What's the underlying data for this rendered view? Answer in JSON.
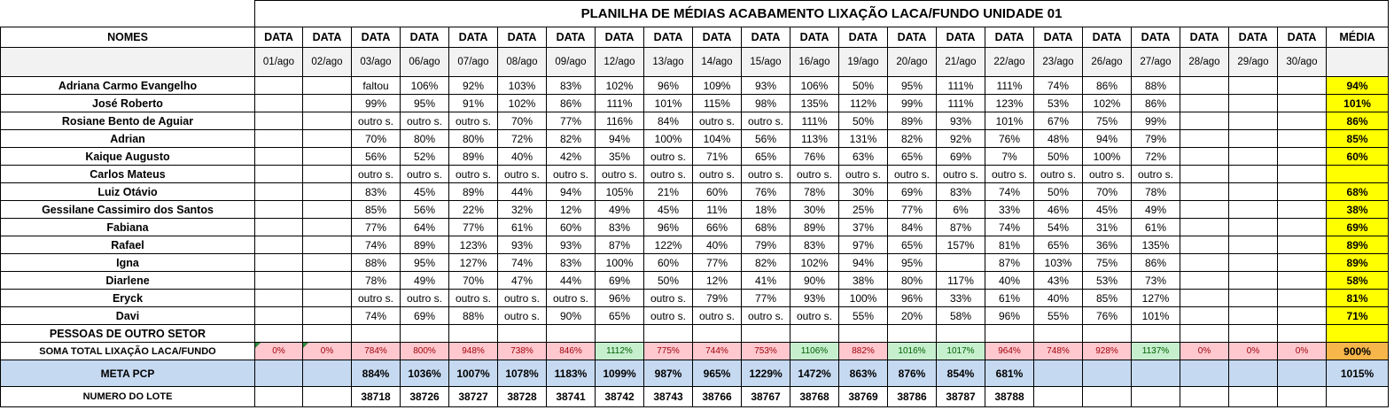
{
  "title": "PLANILHA DE MÉDIAS ACABAMENTO LIXAÇÃO LACA/FUNDO UNIDADE 01",
  "headers": {
    "names_label": "NOMES",
    "date_label": "DATA",
    "avg_label": "MÉDIA",
    "dates": [
      "01/ago",
      "02/ago",
      "03/ago",
      "06/ago",
      "07/ago",
      "08/ago",
      "09/ago",
      "12/ago",
      "13/ago",
      "14/ago",
      "15/ago",
      "16/ago",
      "19/ago",
      "20/ago",
      "21/ago",
      "22/ago",
      "23/ago",
      "26/ago",
      "27/ago",
      "28/ago",
      "29/ago",
      "30/ago"
    ]
  },
  "rows": [
    {
      "name": "Adriana Carmo Evangelho",
      "values": [
        "",
        "",
        "faltou",
        "106%",
        "92%",
        "103%",
        "83%",
        "102%",
        "96%",
        "109%",
        "93%",
        "106%",
        "50%",
        "95%",
        "111%",
        "111%",
        "74%",
        "86%",
        "88%",
        "",
        "",
        ""
      ],
      "avg": "94%"
    },
    {
      "name": "José Roberto",
      "values": [
        "",
        "",
        "99%",
        "95%",
        "91%",
        "102%",
        "86%",
        "111%",
        "101%",
        "115%",
        "98%",
        "135%",
        "112%",
        "99%",
        "111%",
        "123%",
        "53%",
        "102%",
        "86%",
        "",
        "",
        ""
      ],
      "avg": "101%"
    },
    {
      "name": "Rosiane Bento de Aguiar",
      "values": [
        "",
        "",
        "outro s.",
        "outro s.",
        "outro s.",
        "70%",
        "77%",
        "116%",
        "84%",
        "outro s.",
        "outro s.",
        "111%",
        "50%",
        "89%",
        "93%",
        "101%",
        "67%",
        "75%",
        "99%",
        "",
        "",
        ""
      ],
      "avg": "86%"
    },
    {
      "name": "Adrian",
      "values": [
        "",
        "",
        "70%",
        "80%",
        "80%",
        "72%",
        "82%",
        "94%",
        "100%",
        "104%",
        "56%",
        "113%",
        "131%",
        "82%",
        "92%",
        "76%",
        "48%",
        "94%",
        "79%",
        "",
        "",
        ""
      ],
      "avg": "85%"
    },
    {
      "name": "Kaique Augusto",
      "values": [
        "",
        "",
        "56%",
        "52%",
        "89%",
        "40%",
        "42%",
        "35%",
        "outro s.",
        "71%",
        "65%",
        "76%",
        "63%",
        "65%",
        "69%",
        "7%",
        "50%",
        "100%",
        "72%",
        "",
        "",
        ""
      ],
      "avg": "60%"
    },
    {
      "name": "Carlos Mateus",
      "values": [
        "",
        "",
        "outro s.",
        "outro s.",
        "outro s.",
        "outro s.",
        "outro s.",
        "outro s.",
        "outro s.",
        "outro s.",
        "outro s.",
        "outro s.",
        "outro s.",
        "outro s.",
        "outro s.",
        "outro s.",
        "outro s.",
        "outro s.",
        "outro s.",
        "",
        "",
        ""
      ],
      "avg": ""
    },
    {
      "name": "Luiz Otávio",
      "values": [
        "",
        "",
        "83%",
        "45%",
        "89%",
        "44%",
        "94%",
        "105%",
        "21%",
        "60%",
        "76%",
        "78%",
        "30%",
        "69%",
        "83%",
        "74%",
        "50%",
        "70%",
        "78%",
        "",
        "",
        ""
      ],
      "avg": "68%"
    },
    {
      "name": "Gessilane Cassimiro dos Santos",
      "values": [
        "",
        "",
        "85%",
        "56%",
        "22%",
        "32%",
        "12%",
        "49%",
        "45%",
        "11%",
        "18%",
        "30%",
        "25%",
        "77%",
        "6%",
        "33%",
        "46%",
        "45%",
        "49%",
        "",
        "",
        ""
      ],
      "avg": "38%"
    },
    {
      "name": "Fabiana",
      "values": [
        "",
        "",
        "77%",
        "64%",
        "77%",
        "61%",
        "60%",
        "83%",
        "96%",
        "66%",
        "68%",
        "89%",
        "37%",
        "84%",
        "87%",
        "74%",
        "54%",
        "31%",
        "61%",
        "",
        "",
        ""
      ],
      "avg": "69%"
    },
    {
      "name": "Rafael",
      "values": [
        "",
        "",
        "74%",
        "89%",
        "123%",
        "93%",
        "93%",
        "87%",
        "122%",
        "40%",
        "79%",
        "83%",
        "97%",
        "65%",
        "157%",
        "81%",
        "65%",
        "36%",
        "135%",
        "",
        "",
        ""
      ],
      "avg": "89%"
    },
    {
      "name": "Igna",
      "values": [
        "",
        "",
        "88%",
        "95%",
        "127%",
        "74%",
        "83%",
        "100%",
        "60%",
        "77%",
        "82%",
        "102%",
        "94%",
        "95%",
        "",
        "87%",
        "103%",
        "75%",
        "86%",
        "",
        "",
        ""
      ],
      "avg": "89%"
    },
    {
      "name": "Diarlene",
      "values": [
        "",
        "",
        "78%",
        "49%",
        "70%",
        "47%",
        "44%",
        "69%",
        "50%",
        "12%",
        "41%",
        "90%",
        "38%",
        "80%",
        "117%",
        "40%",
        "43%",
        "53%",
        "73%",
        "",
        "",
        ""
      ],
      "avg": "58%"
    },
    {
      "name": "Eryck",
      "values": [
        "",
        "",
        "outro s.",
        "outro s.",
        "outro s.",
        "outro s.",
        "outro s.",
        "96%",
        "outro s.",
        "79%",
        "77%",
        "93%",
        "100%",
        "96%",
        "33%",
        "61%",
        "40%",
        "85%",
        "127%",
        "",
        "",
        ""
      ],
      "avg": "81%"
    },
    {
      "name": "Davi",
      "values": [
        "",
        "",
        "74%",
        "69%",
        "88%",
        "outro s.",
        "90%",
        "65%",
        "outro s.",
        "outro s.",
        "outro s.",
        "outro s.",
        "55%",
        "20%",
        "58%",
        "96%",
        "55%",
        "76%",
        "101%",
        "",
        "",
        ""
      ],
      "avg": "71%"
    },
    {
      "name": "PESSOAS DE OUTRO SETOR",
      "values": [
        "",
        "",
        "",
        "",
        "",
        "",
        "",
        "",
        "",
        "",
        "",
        "",
        "",
        "",
        "",
        "",
        "",
        "",
        "",
        "",
        "",
        ""
      ],
      "avg": ""
    }
  ],
  "sum_row": {
    "label": "SOMA TOTAL LIXAÇÃO LACA/FUNDO",
    "values": [
      "0%",
      "0%",
      "784%",
      "800%",
      "948%",
      "738%",
      "846%",
      "1112%",
      "775%",
      "744%",
      "753%",
      "1106%",
      "882%",
      "1016%",
      "1017%",
      "964%",
      "748%",
      "928%",
      "1137%",
      "0%",
      "0%",
      "0%"
    ],
    "status": [
      "red",
      "red",
      "red",
      "red",
      "red",
      "red",
      "red",
      "green",
      "red",
      "red",
      "red",
      "green",
      "red",
      "green",
      "green",
      "red",
      "red",
      "red",
      "green",
      "red",
      "red",
      "red"
    ],
    "avg": "900%"
  },
  "meta_row": {
    "label": "META PCP",
    "values": [
      "",
      "",
      "884%",
      "1036%",
      "1007%",
      "1078%",
      "1183%",
      "1099%",
      "987%",
      "965%",
      "1229%",
      "1472%",
      "863%",
      "876%",
      "854%",
      "681%",
      "",
      "",
      "",
      "",
      "",
      ""
    ],
    "avg": "1015%"
  },
  "lote_row": {
    "label": "NUMERO DO LOTE",
    "values": [
      "",
      "",
      "38718",
      "38726",
      "38727",
      "38728",
      "38741",
      "38742",
      "38743",
      "38766",
      "38767",
      "38768",
      "38769",
      "38786",
      "38787",
      "38788",
      "",
      "",
      "",
      "",
      "",
      ""
    ],
    "avg": ""
  },
  "colors": {
    "avg_yellow": "#ffff00",
    "sum_avg_orange": "#f7b64a",
    "meta_blue": "#c5d9f1",
    "below_pink": "#ffc7ce",
    "below_text": "#9c0006",
    "above_green": "#c6efce",
    "above_text": "#006100",
    "subheader_gray": "#f2f2f2"
  }
}
